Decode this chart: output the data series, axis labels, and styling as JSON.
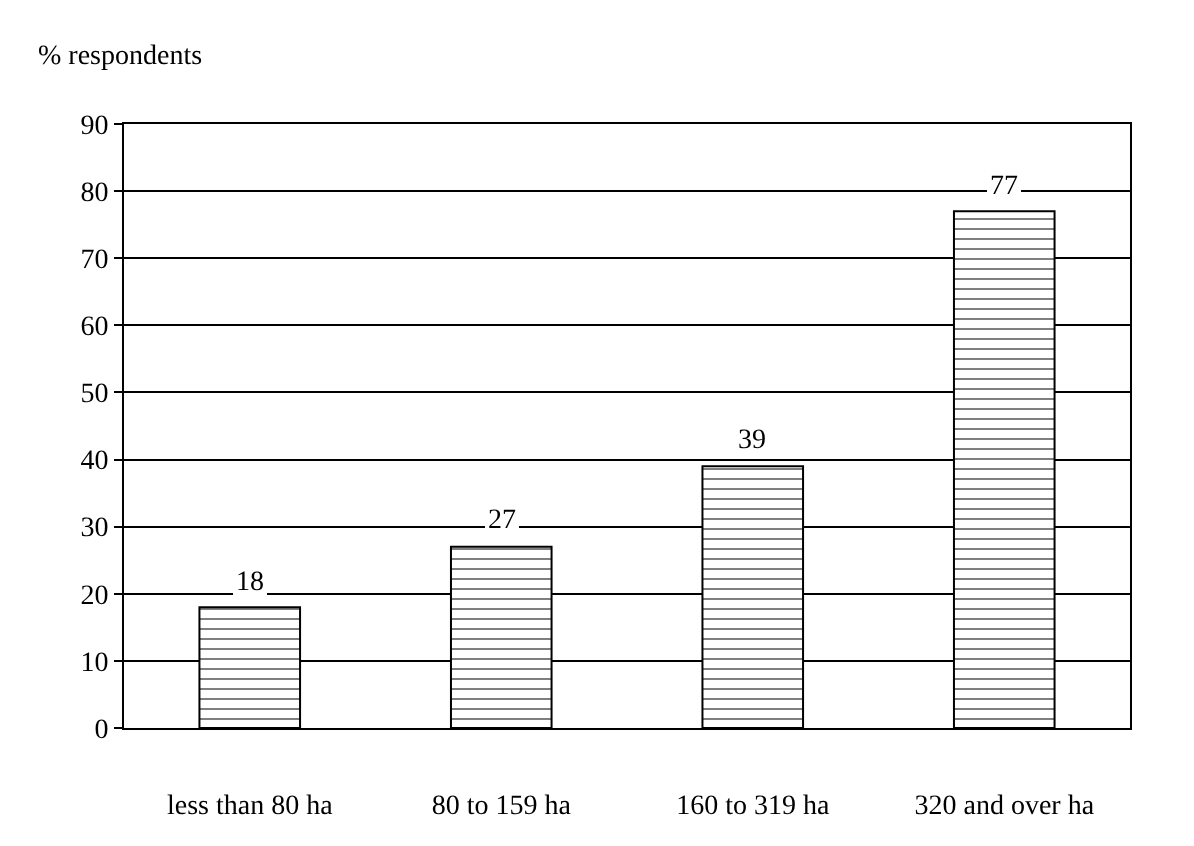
{
  "chart_data": {
    "type": "bar",
    "ylabel": "% respondents",
    "categories": [
      "less than 80 ha",
      "80 to 159 ha",
      "160 to 319 ha",
      "320 and over ha"
    ],
    "values": [
      18,
      27,
      39,
      77
    ],
    "color": "#000000",
    "ylim": [
      0,
      90
    ],
    "yticks": [
      0,
      10,
      20,
      30,
      40,
      50,
      60,
      70,
      80,
      90
    ],
    "grid": "y",
    "data_labels": true,
    "legend": false
  }
}
